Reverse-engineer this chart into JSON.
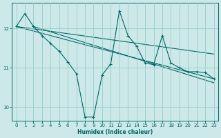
{
  "xlabel": "Humidex (Indice chaleur)",
  "bg_color": "#cce8e8",
  "line_color": "#006666",
  "grid_color": "#99cccc",
  "xlim": [
    -0.5,
    23.5
  ],
  "ylim": [
    9.65,
    12.65
  ],
  "yticks": [
    10,
    11,
    12
  ],
  "xticks": [
    0,
    1,
    2,
    3,
    4,
    5,
    6,
    7,
    8,
    9,
    10,
    11,
    12,
    13,
    14,
    15,
    16,
    17,
    18,
    19,
    20,
    21,
    22,
    23
  ],
  "line1_x": [
    0,
    1,
    2,
    3,
    4,
    5,
    6,
    7,
    8,
    9,
    10,
    11,
    12,
    13,
    14,
    15,
    16,
    17,
    18,
    19,
    20,
    21,
    22,
    23
  ],
  "line1_y": [
    12.05,
    12.38,
    12.05,
    11.82,
    11.62,
    11.42,
    11.15,
    10.85,
    9.75,
    9.75,
    10.82,
    11.1,
    12.45,
    11.82,
    11.55,
    11.12,
    11.08,
    11.82,
    11.12,
    11.0,
    10.9,
    10.9,
    10.88,
    10.72
  ],
  "line2_x": [
    0,
    23
  ],
  "line2_y": [
    12.05,
    10.72
  ],
  "line3_x": [
    0,
    23
  ],
  "line3_y": [
    12.05,
    11.35
  ],
  "line4_x": [
    2,
    23
  ],
  "line4_y": [
    12.05,
    10.62
  ]
}
